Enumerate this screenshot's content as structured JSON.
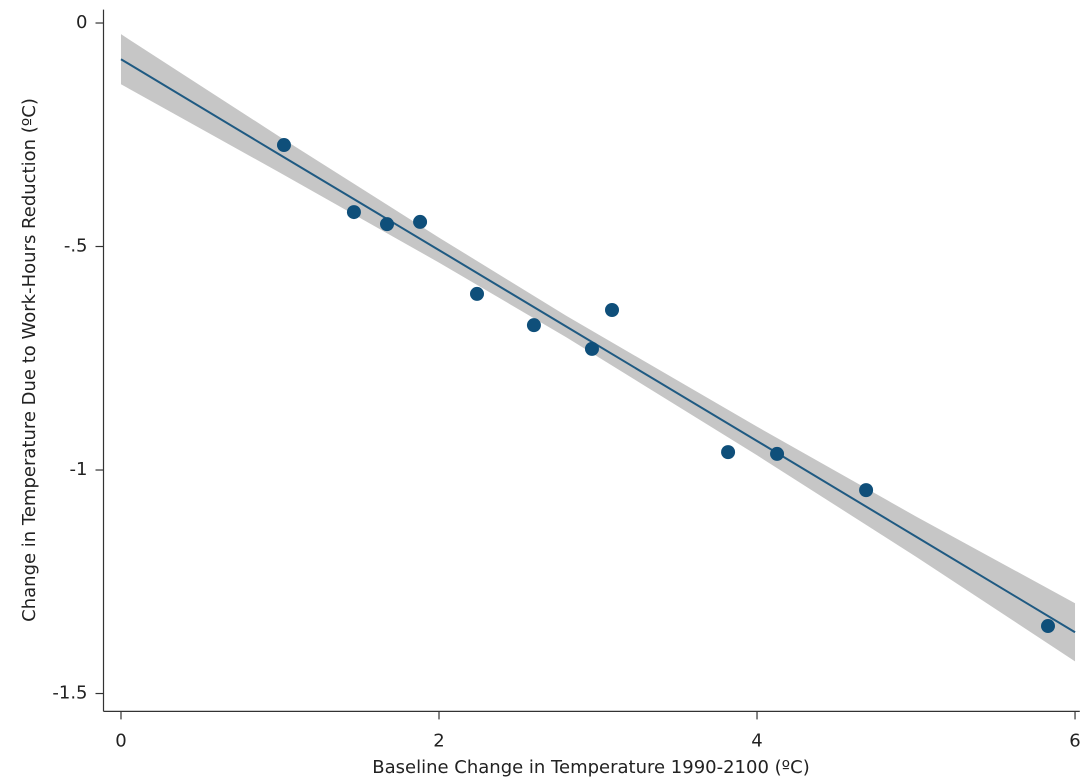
{
  "chart_data": {
    "type": "scatter",
    "x_label": "Baseline Change in Temperature 1990-2100 (ºC)",
    "y_label": "Change in Temperature Due to Work-Hours Reduction (ºC)",
    "xlim": [
      -0.11,
      6.03
    ],
    "ylim": [
      -1.54,
      0.03
    ],
    "xticks": [
      0,
      2,
      4,
      6
    ],
    "yticks": [
      0,
      {
        "value": -0.5,
        "label": "-.5"
      },
      -1,
      -1.5
    ],
    "color": "#0f4f7a",
    "x": [
      1.025,
      1.465,
      1.673,
      1.881,
      2.239,
      2.597,
      2.962,
      3.088,
      3.818,
      4.126,
      4.686,
      5.83
    ],
    "values": [
      -0.273,
      -0.423,
      -0.45,
      -0.445,
      -0.606,
      -0.676,
      -0.729,
      -0.642,
      -0.96,
      -0.964,
      -1.045,
      -1.349
    ],
    "fit": {
      "color": "#1f5a82",
      "band_color": "#c6c6c6",
      "x": [
        0,
        1,
        2,
        2.8,
        4,
        5,
        6
      ],
      "values": [
        -0.081,
        -0.295,
        -0.508,
        -0.679,
        -0.935,
        -1.149,
        -1.363
      ],
      "lower": [
        -0.137,
        -0.335,
        -0.536,
        -0.703,
        -0.967,
        -1.194,
        -1.428
      ],
      "upper": [
        -0.025,
        -0.255,
        -0.48,
        -0.655,
        -0.903,
        -1.104,
        -1.298
      ]
    }
  }
}
